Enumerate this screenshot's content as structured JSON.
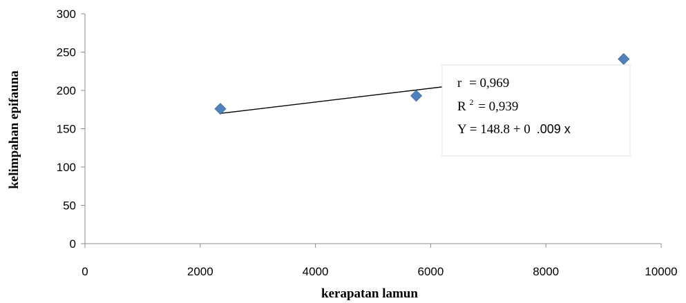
{
  "chart_data": {
    "type": "scatter",
    "title": "",
    "xlabel": "kerapatan lamun",
    "ylabel": "kelimpahan epifauna",
    "xlim": [
      0,
      10000
    ],
    "ylim": [
      0,
      300
    ],
    "x_ticks": [
      0,
      2000,
      4000,
      6000,
      8000,
      10000
    ],
    "y_ticks": [
      0,
      50,
      100,
      150,
      200,
      250,
      300
    ],
    "grid": false,
    "legend": "none",
    "marker": "diamond",
    "marker_color": "#4f81bd",
    "series": [
      {
        "points": [
          {
            "x": 2350,
            "y": 176
          },
          {
            "x": 5750,
            "y": 193
          },
          {
            "x": 9350,
            "y": 241
          }
        ]
      }
    ],
    "trendline": {
      "intercept": 148.8,
      "slope": 0.009,
      "x_range": [
        2350,
        9350
      ],
      "color": "#000000"
    },
    "annotations": {
      "r_label": "r",
      "r_value": "= 0,969",
      "r2_label": "R",
      "r2_sup": "2",
      "r2_value": "= 0,939",
      "equation_serif": "Y = 148.8 + 0",
      "equation_sans": ".009 x"
    }
  }
}
